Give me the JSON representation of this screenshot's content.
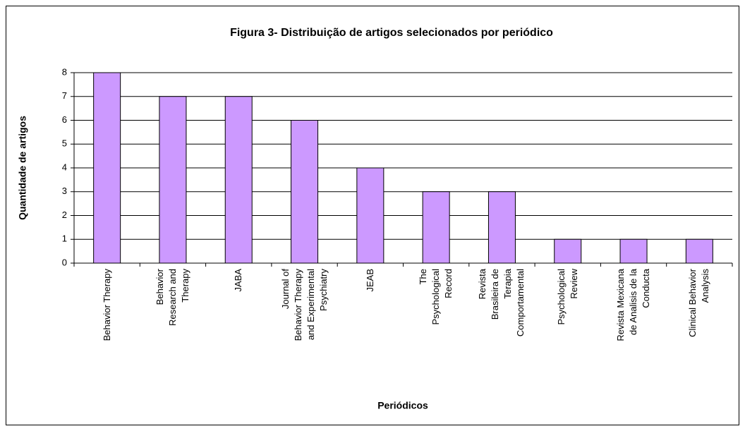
{
  "chart_data": {
    "type": "bar",
    "title": "Figura 3- Distribuição de artigos selecionados por periódico",
    "x_label": "Periódicos",
    "y_label": "Quantidade de artigos",
    "categories": [
      "Behavior Therapy",
      "Behavior\nResearch and\nTherapy",
      "JABA",
      "Journal of\nBehavior Therapy\nand Experimental\nPsychiatry",
      "JEAB",
      "The\nPsychological\nRecord",
      "Revista\nBrasileira de\nTerapia\nComportamental",
      "Psychological\nReview",
      "Revista Mexicana\nde Analisis de la\nConducta",
      "Clinical Behavior\nAnalysis"
    ],
    "values": [
      8,
      7,
      7,
      6,
      4,
      3,
      3,
      1,
      1,
      1
    ],
    "color": "#cc99ff",
    "ylim": [
      0,
      8
    ],
    "yticks": [
      0,
      1,
      2,
      3,
      4,
      5,
      6,
      7,
      8
    ],
    "grid": true
  }
}
